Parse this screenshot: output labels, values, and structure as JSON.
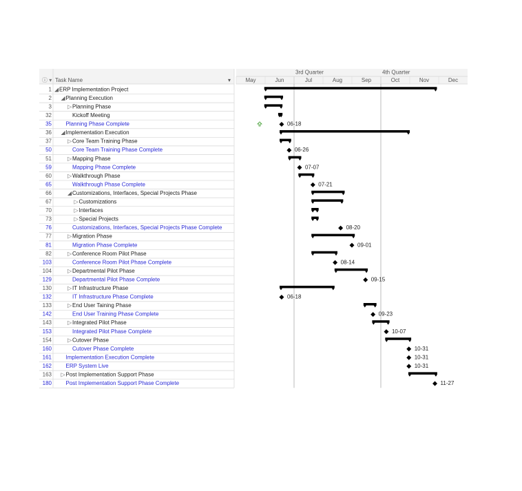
{
  "header": {
    "task_name": "Task Name"
  },
  "timeline": {
    "xlim": [
      5,
      13
    ],
    "quarters": [
      {
        "value": 7,
        "label": "3rd Quarter"
      },
      {
        "value": 10,
        "label": "4th Quarter"
      }
    ],
    "xticks": [
      {
        "value": 5,
        "label": "May"
      },
      {
        "value": 6,
        "label": "Jun"
      },
      {
        "value": 7,
        "label": "Jul"
      },
      {
        "value": 8,
        "label": "Aug"
      },
      {
        "value": 9,
        "label": "Sep"
      },
      {
        "value": 10,
        "label": "Oct"
      },
      {
        "value": 11,
        "label": "Nov"
      },
      {
        "value": 12,
        "label": "Dec"
      }
    ]
  },
  "rows": [
    {
      "id": 1,
      "name": "ERP Implementation Project",
      "level": 0,
      "outline": "expanded",
      "bar": [
        5.97,
        11.94
      ]
    },
    {
      "id": 2,
      "name": "Planning Execution",
      "level": 1,
      "outline": "expanded",
      "bar": [
        5.97,
        6.62
      ]
    },
    {
      "id": 3,
      "name": "Planning Phase",
      "level": 2,
      "outline": "collapsed",
      "bar": [
        5.97,
        6.6
      ]
    },
    {
      "id": 32,
      "name": "Kickoff Meeting",
      "level": 2,
      "bar": [
        6.45,
        6.6
      ]
    },
    {
      "id": 35,
      "name": "Planning Phase Complete",
      "level": 1,
      "milestone": {
        "at": 6.57,
        "label": "06-18"
      }
    },
    {
      "id": 36,
      "name": "Implementation Execution",
      "level": 1,
      "outline": "expanded",
      "bar": [
        6.5,
        11.0
      ]
    },
    {
      "id": 37,
      "name": "Core Team Training Phase",
      "level": 2,
      "outline": "collapsed",
      "bar": [
        6.5,
        6.9
      ]
    },
    {
      "id": 50,
      "name": "Core Team Training Phase Complete",
      "level": 2,
      "milestone": {
        "at": 6.83,
        "label": "06-26"
      }
    },
    {
      "id": 51,
      "name": "Mapping Phase",
      "level": 2,
      "outline": "collapsed",
      "bar": [
        6.8,
        7.25
      ]
    },
    {
      "id": 59,
      "name": "Mapping Phase Complete",
      "level": 2,
      "milestone": {
        "at": 7.19,
        "label": "07-07"
      }
    },
    {
      "id": 60,
      "name": "Walkthrough Phase",
      "level": 2,
      "outline": "collapsed",
      "bar": [
        7.15,
        7.7
      ]
    },
    {
      "id": 65,
      "name": "Walkthrough Phase Complete",
      "level": 2,
      "milestone": {
        "at": 7.65,
        "label": "07-21"
      }
    },
    {
      "id": 66,
      "name": "Customizations, Interfaces, Special Projects Phase",
      "level": 2,
      "outline": "expanded",
      "bar": [
        7.6,
        8.75
      ]
    },
    {
      "id": 67,
      "name": "Customizations",
      "level": 3,
      "outline": "collapsed",
      "bar": [
        7.6,
        8.7
      ]
    },
    {
      "id": 70,
      "name": "Interfaces",
      "level": 3,
      "outline": "collapsed",
      "bar": [
        7.6,
        7.85
      ]
    },
    {
      "id": 73,
      "name": "Special Projects",
      "level": 3,
      "outline": "collapsed",
      "bar": [
        7.6,
        7.85
      ]
    },
    {
      "id": 76,
      "name": "Customizations, Interfaces, Special Projects Phase Complete",
      "level": 2,
      "milestone": {
        "at": 8.61,
        "label": "08-20"
      }
    },
    {
      "id": 77,
      "name": "Migration Phase",
      "level": 2,
      "outline": "collapsed",
      "bar": [
        7.6,
        9.1
      ]
    },
    {
      "id": 81,
      "name": "Migration Phase Complete",
      "level": 2,
      "milestone": {
        "at": 9.0,
        "label": "09-01"
      }
    },
    {
      "id": 82,
      "name": "Conference Room Pilot Phase",
      "level": 2,
      "outline": "collapsed",
      "bar": [
        7.6,
        8.5
      ]
    },
    {
      "id": 103,
      "name": "Conference Room Pilot Phase Complete",
      "level": 2,
      "milestone": {
        "at": 8.42,
        "label": "08-14"
      }
    },
    {
      "id": 104,
      "name": "Departmental Pilot Phase",
      "level": 2,
      "outline": "collapsed",
      "bar": [
        8.4,
        9.55
      ]
    },
    {
      "id": 129,
      "name": "Departmental Pilot Phase Complete",
      "level": 2,
      "milestone": {
        "at": 9.47,
        "label": "09-15"
      }
    },
    {
      "id": 130,
      "name": "IT Infrastructure Phase",
      "level": 2,
      "outline": "collapsed",
      "bar": [
        6.5,
        8.4
      ]
    },
    {
      "id": 132,
      "name": "IT Infrastructure Phase Complete",
      "level": 2,
      "milestone": {
        "at": 6.57,
        "label": "06-18"
      }
    },
    {
      "id": 133,
      "name": "End User Taining Phase",
      "level": 2,
      "outline": "collapsed",
      "bar": [
        9.4,
        9.85
      ]
    },
    {
      "id": 142,
      "name": "End User Training Phase Complete",
      "level": 2,
      "milestone": {
        "at": 9.73,
        "label": "09-23"
      }
    },
    {
      "id": 143,
      "name": "Integrated Pilot Phase",
      "level": 2,
      "outline": "collapsed",
      "bar": [
        9.7,
        10.3
      ]
    },
    {
      "id": 153,
      "name": "Integrated Pilot Phase Complete",
      "level": 2,
      "milestone": {
        "at": 10.19,
        "label": "10-07"
      }
    },
    {
      "id": 154,
      "name": "Cutover Phase",
      "level": 2,
      "outline": "collapsed",
      "bar": [
        10.15,
        11.05
      ]
    },
    {
      "id": 160,
      "name": "Cutover Phase Complete",
      "level": 2,
      "milestone": {
        "at": 10.97,
        "label": "10-31"
      }
    },
    {
      "id": 161,
      "name": "Implementation Execution Complete",
      "level": 1,
      "milestone": {
        "at": 10.97,
        "label": "10-31"
      }
    },
    {
      "id": 162,
      "name": "ERP System Live",
      "level": 1,
      "milestone": {
        "at": 10.97,
        "label": "10-31"
      }
    },
    {
      "id": 163,
      "name": "Post Implementation Support Phase",
      "level": 1,
      "outline": "collapsed",
      "bar": [
        10.95,
        11.95
      ]
    },
    {
      "id": 180,
      "name": "Post Implementation Support Phase Complete",
      "level": 1,
      "milestone": {
        "at": 11.87,
        "label": "11-27"
      }
    }
  ]
}
